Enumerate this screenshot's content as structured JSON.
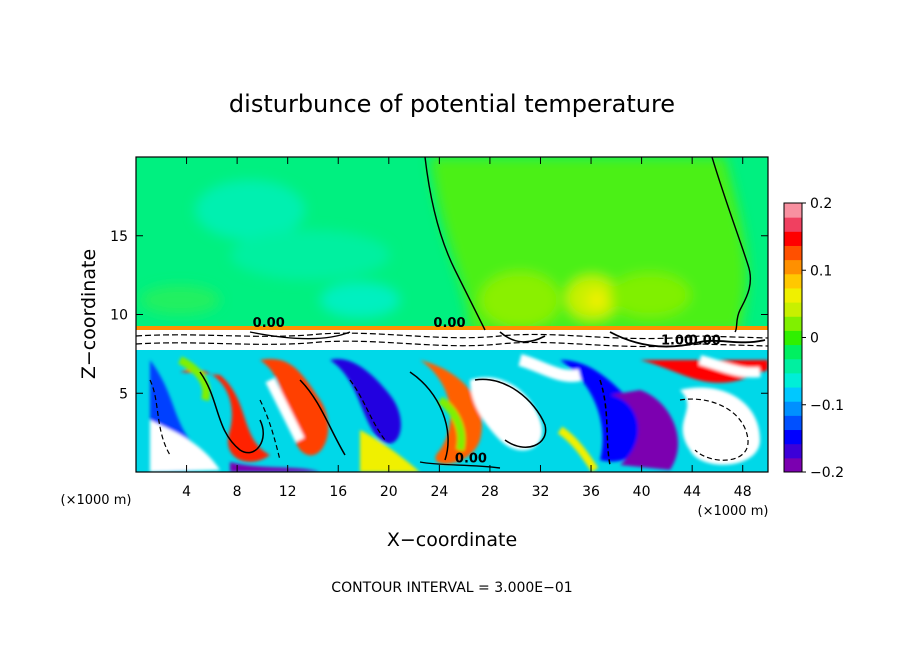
{
  "chart_data": {
    "type": "heatmap",
    "title": "disturbunce of potential temperature",
    "xlabel": "X−coordinate",
    "ylabel": "Z−coordinate",
    "x_unit": "(×1000 m)",
    "x_unit_right": "(×1000 m)",
    "xlim": [
      0,
      50
    ],
    "ylim": [
      0,
      20
    ],
    "x_ticks": [
      4,
      8,
      12,
      16,
      20,
      24,
      28,
      32,
      36,
      40,
      44,
      48
    ],
    "y_ticks": [
      5,
      10,
      15
    ],
    "colorbar": {
      "range": [
        -0.2,
        0.2
      ],
      "tick_values": [
        0.2,
        0.1,
        0,
        -0.1,
        -0.2
      ],
      "tick_labels": [
        "0.2",
        "0.1",
        "0",
        "−0.1",
        "−0.2"
      ],
      "colors": [
        "#7b00b0",
        "#3c00d8",
        "#0000ff",
        "#0050ff",
        "#0090ff",
        "#00c8ff",
        "#00eed8",
        "#00f0a0",
        "#00f060",
        "#30f000",
        "#80f000",
        "#c8f000",
        "#f0f000",
        "#ffc800",
        "#ff9000",
        "#ff5000",
        "#ff0000",
        "#f04060",
        "#f890a0"
      ]
    },
    "contour_labels": [
      {
        "text": "0.00",
        "x": 10.5,
        "y": 9.2
      },
      {
        "text": "0.00",
        "x": 24.8,
        "y": 9.2
      },
      {
        "text": "1.00",
        "x": 42.8,
        "y": 8.1
      },
      {
        "text": "0.00",
        "x": 45.0,
        "y": 8.1
      },
      {
        "text": "0.00",
        "x": 26.5,
        "y": 0.6
      }
    ],
    "contour_interval_text": "CONTOUR INTERVAL = 3.000E−01"
  }
}
